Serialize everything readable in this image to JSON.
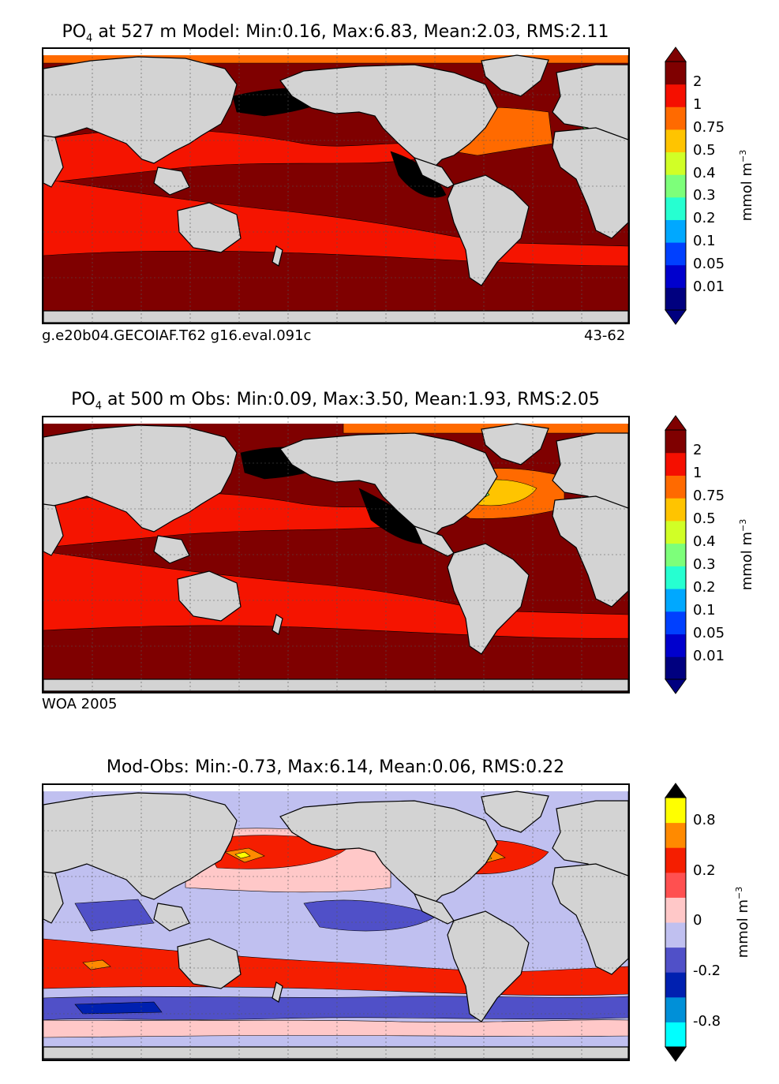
{
  "panels": [
    {
      "title_sym": "PO",
      "title_sub": "4",
      "title_rest": "at 527 m Model: Min:0.16, Max:6.83, Mean:2.03, RMS:2.11",
      "footer_left": "g.e20b04.GECOIAF.T62 g16.eval.091c",
      "footer_right": "43-62",
      "colorbar": {
        "colors": [
          "#00007f",
          "#0000cd",
          "#0040ff",
          "#00a8ff",
          "#26ffd1",
          "#7dff7a",
          "#d1ff26",
          "#ffc400",
          "#ff6a00",
          "#f50f00",
          "#7f0000"
        ],
        "over": "#7f0000",
        "under": "#00007f",
        "ticks": [
          "0.01",
          "0.05",
          "0.1",
          "0.2",
          "0.3",
          "0.4",
          "0.5",
          "0.75",
          "1",
          "2"
        ],
        "units_base": "mmol m",
        "units_exp": "−3"
      }
    },
    {
      "title_sym": "PO",
      "title_sub": "4",
      "title_rest": "at 500 m Obs: Min:0.09, Max:3.50, Mean:1.93, RMS:2.05",
      "footer_left": "WOA 2005",
      "footer_right": "",
      "colorbar": {
        "colors": [
          "#00007f",
          "#0000cd",
          "#0040ff",
          "#00a8ff",
          "#26ffd1",
          "#7dff7a",
          "#d1ff26",
          "#ffc400",
          "#ff6a00",
          "#f50f00",
          "#7f0000"
        ],
        "over": "#7f0000",
        "under": "#00007f",
        "ticks": [
          "0.01",
          "0.05",
          "0.1",
          "0.2",
          "0.3",
          "0.4",
          "0.5",
          "0.75",
          "1",
          "2"
        ],
        "units_base": "mmol m",
        "units_exp": "−3"
      }
    },
    {
      "title_sym": "",
      "title_sub": "",
      "title_rest": "Mod-Obs: Min:-0.73, Max:6.14, Mean:0.06, RMS:0.22",
      "footer_left": "",
      "footer_right": "",
      "colorbar": {
        "colors": [
          "#00ffff",
          "#0090d8",
          "#0020b0",
          "#5050c8",
          "#c0c0f0",
          "#ffc8c8",
          "#ff5050",
          "#f51e00",
          "#ff8a00",
          "#ffff00"
        ],
        "over": "#000000",
        "under": "#000000",
        "ticks": [
          "-0.8",
          "-0.2",
          "0",
          "0.2",
          "0.8"
        ],
        "units_base": "mmol m",
        "units_exp": "−3"
      }
    }
  ],
  "colors": {
    "land": "#d3d3d3",
    "nodata": "#ffffff",
    "p_dark": "#7f0000",
    "p_red": "#f51400",
    "p_orange": "#ff6a00",
    "p_black": "#000000",
    "p_yellow": "#ffc400",
    "p_green": "#7dff7a",
    "d_pink": "#ffc8c8",
    "d_lav": "#c0c0f0",
    "d_blue": "#5050c8",
    "d_red": "#f51e00",
    "d_orange": "#ff8a00",
    "d_yellow": "#ffff00",
    "d_navy": "#0020b0"
  }
}
